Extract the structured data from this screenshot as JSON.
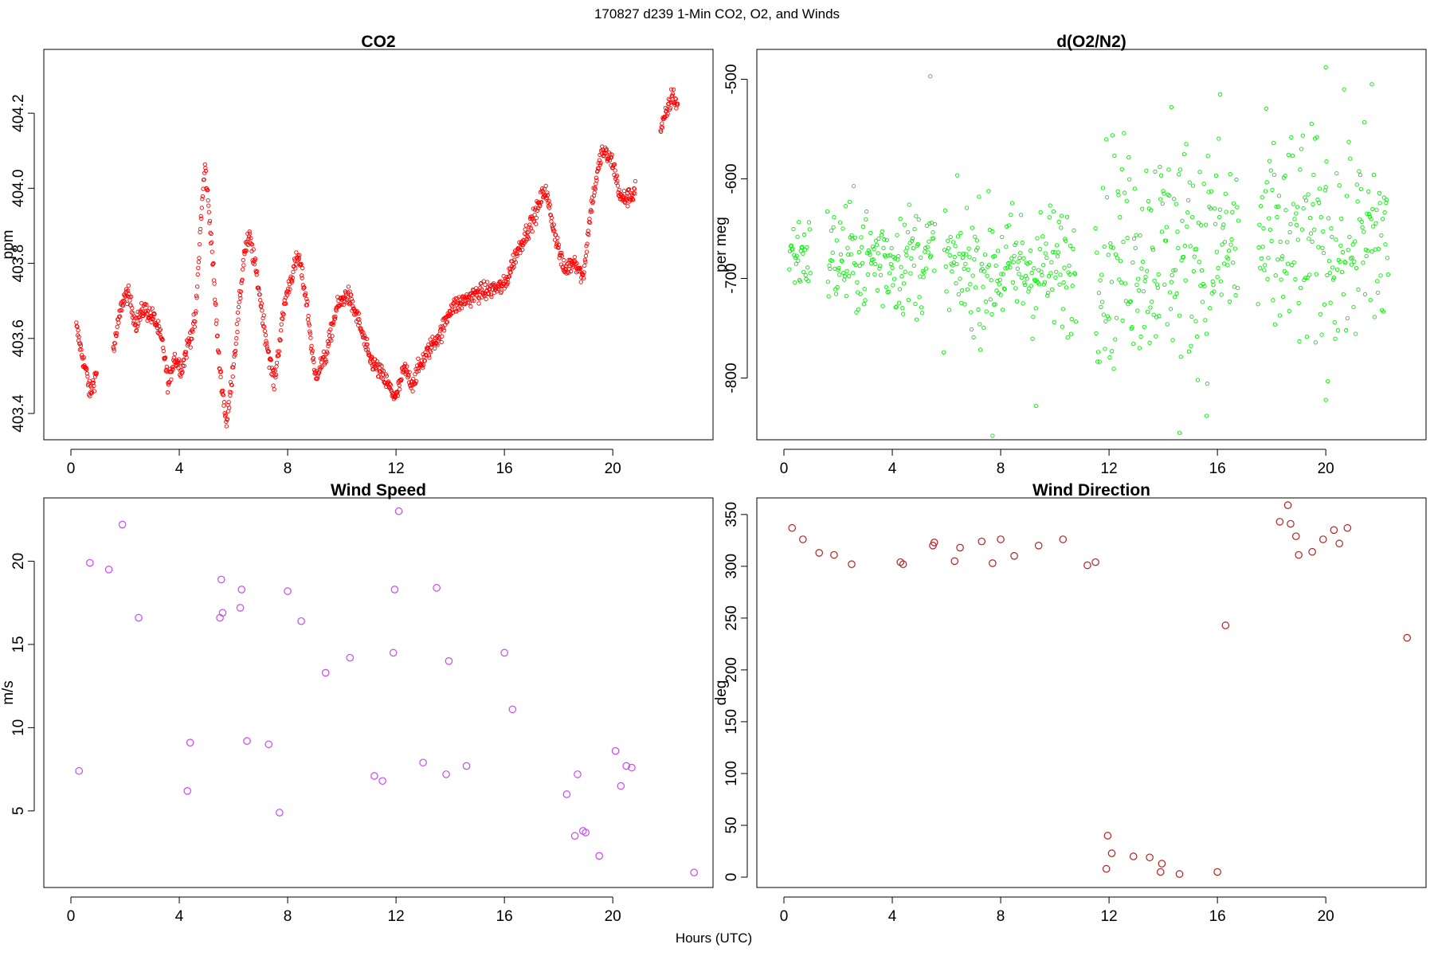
{
  "figure": {
    "title": "170827   d239   1-Min CO2, O2, and Winds",
    "xlabel": "Hours (UTC)"
  },
  "chart_data": [
    {
      "type": "scatter",
      "title": "CO2",
      "ylabel": "ppm",
      "xlim": [
        -1,
        23.7
      ],
      "ylim": [
        403.33,
        404.37
      ],
      "xticks": [
        0,
        4,
        8,
        12,
        16,
        20
      ],
      "yticks": [
        403.4,
        403.6,
        403.8,
        404.0,
        404.2
      ],
      "ytick_labels": [
        "403.4",
        "403.6",
        "403.8",
        "404.0",
        "404.2"
      ],
      "color": "#ff0000",
      "marker": "small-circle",
      "anchors": [
        [
          0.2,
          403.63
        ],
        [
          0.4,
          403.56
        ],
        [
          0.6,
          403.5
        ],
        [
          0.7,
          403.45
        ],
        [
          0.9,
          403.5
        ],
        [
          1.6,
          403.58
        ],
        [
          1.9,
          403.7
        ],
        [
          2.1,
          403.72
        ],
        [
          2.4,
          403.64
        ],
        [
          2.7,
          403.68
        ],
        [
          3.1,
          403.65
        ],
        [
          3.4,
          403.58
        ],
        [
          3.6,
          403.47
        ],
        [
          3.8,
          403.55
        ],
        [
          4.1,
          403.52
        ],
        [
          4.3,
          403.58
        ],
        [
          4.6,
          403.65
        ],
        [
          4.8,
          403.92
        ],
        [
          4.95,
          404.06
        ],
        [
          5.2,
          403.85
        ],
        [
          5.45,
          403.55
        ],
        [
          5.75,
          403.37
        ],
        [
          6.1,
          403.6
        ],
        [
          6.4,
          403.83
        ],
        [
          6.6,
          403.87
        ],
        [
          6.9,
          403.75
        ],
        [
          7.2,
          403.6
        ],
        [
          7.5,
          403.48
        ],
        [
          7.9,
          403.7
        ],
        [
          8.2,
          403.78
        ],
        [
          8.4,
          403.82
        ],
        [
          8.7,
          403.7
        ],
        [
          9.0,
          403.5
        ],
        [
          9.4,
          403.55
        ],
        [
          9.8,
          403.68
        ],
        [
          10.2,
          403.72
        ],
        [
          10.6,
          403.65
        ],
        [
          11.0,
          403.55
        ],
        [
          11.5,
          403.5
        ],
        [
          12.0,
          403.44
        ],
        [
          12.3,
          403.52
        ],
        [
          12.6,
          403.48
        ],
        [
          12.9,
          403.53
        ],
        [
          13.3,
          403.58
        ],
        [
          13.7,
          403.62
        ],
        [
          14.0,
          403.68
        ],
        [
          14.5,
          403.7
        ],
        [
          15.0,
          403.72
        ],
        [
          15.5,
          403.73
        ],
        [
          16.0,
          403.74
        ],
        [
          16.4,
          403.82
        ],
        [
          16.8,
          403.88
        ],
        [
          17.2,
          403.94
        ],
        [
          17.5,
          404.0
        ],
        [
          17.8,
          403.9
        ],
        [
          18.2,
          403.78
        ],
        [
          18.6,
          403.81
        ],
        [
          18.9,
          403.76
        ],
        [
          19.2,
          403.95
        ],
        [
          19.6,
          404.1
        ],
        [
          20.0,
          404.07
        ],
        [
          20.3,
          403.97
        ],
        [
          20.7,
          403.98
        ],
        [
          21.9,
          404.18
        ],
        [
          22.2,
          404.25
        ],
        [
          22.4,
          404.22
        ]
      ],
      "gaps": [
        [
          0.95,
          1.55
        ],
        [
          20.85,
          21.75
        ]
      ]
    },
    {
      "type": "scatter",
      "title": "d(O2/N2)",
      "ylabel": "per meg",
      "xlim": [
        -1,
        23.7
      ],
      "ylim": [
        -862,
        -470
      ],
      "xticks": [
        0,
        4,
        8,
        12,
        16,
        20
      ],
      "yticks": [
        -500,
        -600,
        -700,
        -800
      ],
      "ytick_labels": [
        "-500",
        "-600",
        "-700",
        "-800"
      ],
      "color": "#00ee00",
      "marker": "small-circle",
      "segments": [
        [
          0.2,
          1.0,
          -675,
          20
        ],
        [
          1.6,
          5.6,
          -680,
          28
        ],
        [
          5.9,
          10.8,
          -690,
          32
        ],
        [
          11.5,
          16.8,
          -670,
          55
        ],
        [
          17.5,
          22.3,
          -665,
          55
        ]
      ],
      "outliers": [
        [
          5.4,
          -497
        ],
        [
          7.7,
          -858
        ],
        [
          9.3,
          -828
        ],
        [
          14.6,
          -855
        ],
        [
          15.6,
          -838
        ],
        [
          20.0,
          -488
        ],
        [
          20.0,
          -822
        ],
        [
          21.7,
          -505
        ],
        [
          16.1,
          -515
        ],
        [
          12.1,
          -773
        ],
        [
          14.3,
          -528
        ]
      ]
    },
    {
      "type": "scatter",
      "title": "Wind Speed",
      "ylabel": "m/s",
      "xlim": [
        -1,
        23.7
      ],
      "ylim": [
        0.4,
        23.8
      ],
      "xticks": [
        0,
        4,
        8,
        12,
        16,
        20
      ],
      "yticks": [
        5,
        10,
        15,
        20
      ],
      "ytick_labels": [
        "5",
        "10",
        "15",
        "20"
      ],
      "color": "#cc44ff",
      "marker": "circle",
      "x": [
        0.3,
        0.7,
        1.4,
        1.9,
        2.5,
        4.3,
        4.4,
        5.5,
        5.55,
        5.6,
        6.25,
        6.3,
        6.5,
        7.3,
        7.7,
        8.0,
        8.5,
        9.4,
        10.3,
        11.2,
        11.5,
        11.9,
        11.95,
        12.1,
        13.0,
        13.5,
        13.85,
        13.95,
        14.6,
        16.0,
        16.3,
        18.3,
        18.6,
        18.7,
        18.9,
        19.0,
        19.5,
        20.1,
        20.3,
        20.5,
        20.7,
        23.0
      ],
      "y": [
        7.4,
        19.9,
        19.5,
        22.2,
        16.6,
        6.2,
        9.1,
        16.6,
        18.9,
        16.9,
        17.2,
        18.3,
        9.2,
        9.0,
        4.9,
        18.2,
        16.4,
        13.3,
        14.2,
        7.1,
        6.8,
        14.5,
        18.3,
        23.0,
        7.9,
        18.4,
        7.2,
        14.0,
        7.7,
        14.5,
        11.1,
        6.0,
        3.5,
        7.2,
        3.8,
        3.7,
        2.3,
        8.6,
        6.5,
        7.7,
        7.6,
        1.3
      ]
    },
    {
      "type": "scatter",
      "title": "Wind Direction",
      "ylabel": "deg",
      "xlim": [
        -1,
        23.7
      ],
      "ylim": [
        -10,
        366
      ],
      "xticks": [
        0,
        4,
        8,
        12,
        16,
        20
      ],
      "yticks": [
        0,
        50,
        100,
        150,
        200,
        250,
        300,
        350
      ],
      "ytick_labels": [
        "0",
        "50",
        "100",
        "150",
        "200",
        "250",
        "300",
        "350"
      ],
      "color": "#b22222",
      "marker": "circle",
      "x": [
        0.3,
        0.7,
        1.3,
        1.85,
        2.5,
        4.3,
        4.4,
        5.5,
        5.55,
        6.3,
        6.5,
        7.3,
        7.7,
        8.0,
        8.5,
        9.4,
        10.3,
        11.2,
        11.5,
        11.9,
        11.95,
        12.1,
        12.9,
        13.5,
        13.9,
        13.95,
        14.6,
        16.0,
        16.3,
        18.3,
        18.6,
        18.7,
        18.9,
        19.0,
        19.5,
        19.9,
        20.3,
        20.5,
        20.8,
        23.0
      ],
      "y": [
        337,
        326,
        313,
        311,
        302,
        304,
        302,
        320,
        323,
        305,
        318,
        324,
        303,
        326,
        310,
        320,
        326,
        301,
        304,
        8,
        40,
        23,
        20,
        19,
        5,
        13,
        3,
        5,
        243,
        343,
        359,
        341,
        329,
        311,
        314,
        326,
        335,
        322,
        337,
        231
      ]
    }
  ]
}
